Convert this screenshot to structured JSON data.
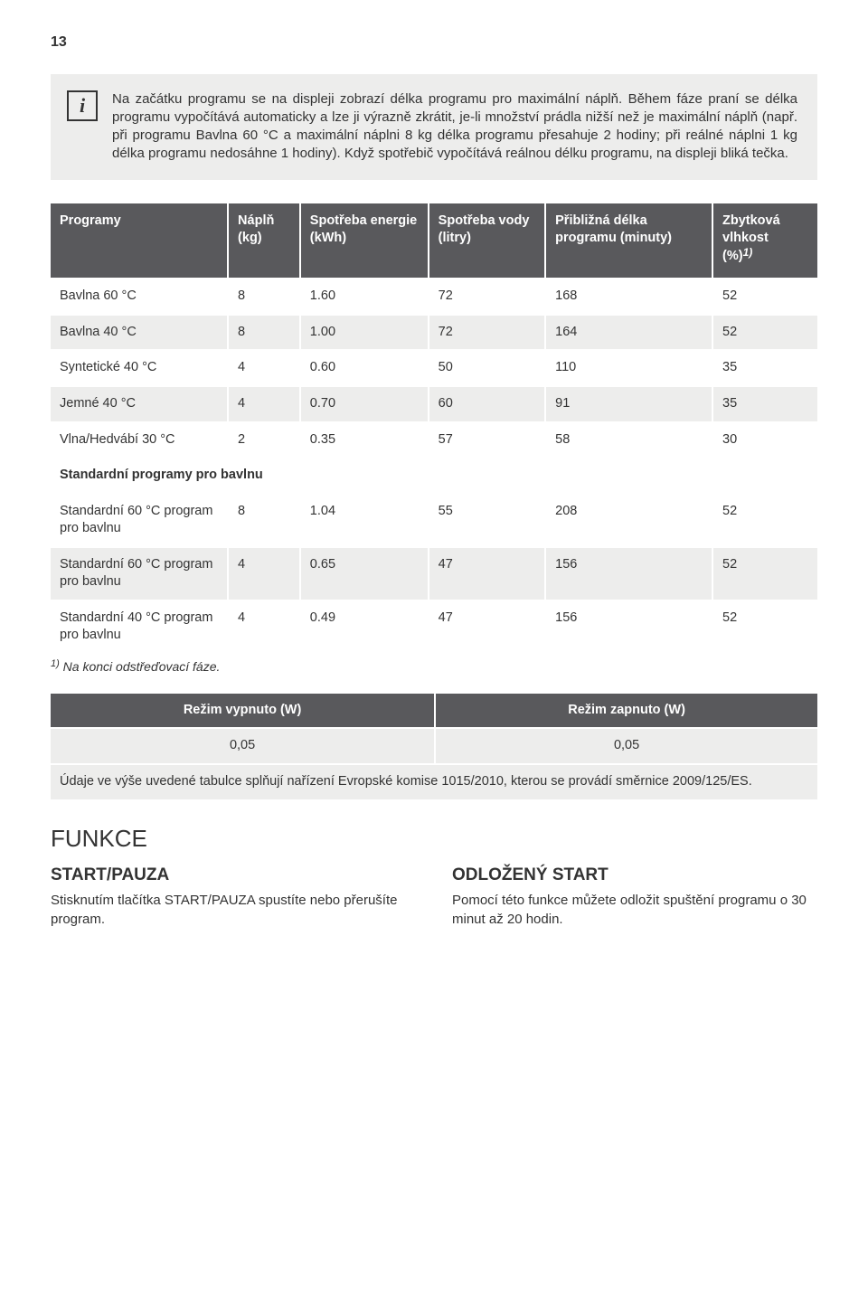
{
  "page_number": "13",
  "info": {
    "icon_glyph": "i",
    "text": "Na začátku programu se na displeji zobrazí délka programu pro maximální náplň. Během fáze praní se délka programu vypočítává automaticky a lze ji výrazně zkrátit, je-li množství prádla nižší než je maximální náplň (např. při programu Bavlna 60 °C a maximální náplni 8 kg délka programu přesahuje 2 hodiny; při reálné náplni 1 kg délka programu nedosáhne 1 hodiny). Když spotřebič vypočítává reálnou délku programu, na displeji bliká tečka."
  },
  "programs_table": {
    "headers": {
      "program": "Programy",
      "load": "Náplň (kg)",
      "energy": "Spotřeba energie (kWh)",
      "water": "Spotřeba vody (litry)",
      "duration": "Přibližná délka programu (minuty)",
      "humidity_a": "Zbytková vlhkost",
      "humidity_b": "(%)",
      "humidity_sup": "1)"
    },
    "rows": [
      {
        "alt": false,
        "cells": [
          "Bavlna 60 °C",
          "8",
          "1.60",
          "72",
          "168",
          "52"
        ]
      },
      {
        "alt": true,
        "cells": [
          "Bavlna 40 °C",
          "8",
          "1.00",
          "72",
          "164",
          "52"
        ]
      },
      {
        "alt": false,
        "cells": [
          "Syntetické 40 °C",
          "4",
          "0.60",
          "50",
          "110",
          "35"
        ]
      },
      {
        "alt": true,
        "cells": [
          "Jemné 40 °C",
          "4",
          "0.70",
          "60",
          "91",
          "35"
        ]
      },
      {
        "alt": false,
        "cells": [
          "Vlna/Hedvábí 30 °C",
          "2",
          "0.35",
          "57",
          "58",
          "30"
        ]
      }
    ],
    "section_label": "Standardní programy pro bavlnu",
    "std_rows": [
      {
        "alt": false,
        "cells": [
          "Standardní 60 °C program pro bavlnu",
          "8",
          "1.04",
          "55",
          "208",
          "52"
        ]
      },
      {
        "alt": true,
        "cells": [
          "Standardní 60 °C program pro bavlnu",
          "4",
          "0.65",
          "47",
          "156",
          "52"
        ]
      },
      {
        "alt": false,
        "cells": [
          "Standardní 40 °C program pro bavlnu",
          "4",
          "0.49",
          "47",
          "156",
          "52"
        ]
      }
    ],
    "footnote_sup": "1)",
    "footnote": " Na konci odstřeďovací fáze."
  },
  "modes_table": {
    "headers": [
      "Režim vypnuto (W)",
      "Režim zapnuto (W)"
    ],
    "values": [
      "0,05",
      "0,05"
    ],
    "note": "Údaje ve výše uvedené tabulce splňují nařízení Evropské komise 1015/2010, kterou se provádí směrnice 2009/125/ES."
  },
  "funkce": {
    "title": "FUNKCE",
    "left": {
      "title": "START/PAUZA",
      "text": "Stisknutím tlačítka START/PAUZA spustíte nebo přerušíte program."
    },
    "right": {
      "title": "ODLOŽENÝ START",
      "text": "Pomocí této funkce můžete odložit spuštění programu o 30 minut až 20 hodin."
    }
  },
  "colors": {
    "header_bg": "#59595c",
    "alt_row_bg": "#ededec",
    "text": "#333333"
  }
}
